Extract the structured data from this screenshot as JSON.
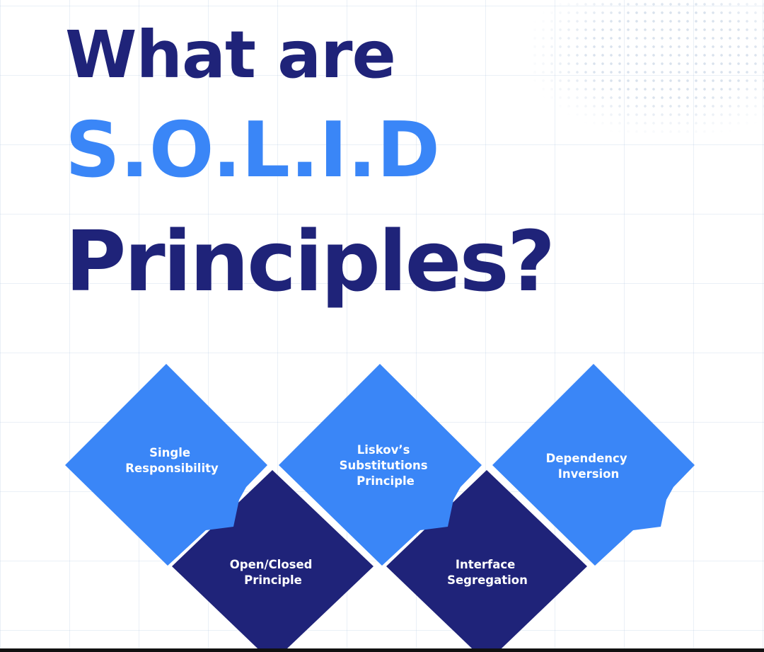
{
  "heading": {
    "line1": "What are",
    "line2": "S.O.L.I.D",
    "line3": "Principles?"
  },
  "principles": {
    "single_responsibility": [
      "Single",
      "Responsibility"
    ],
    "open_closed": [
      "Open/Closed",
      "Principle"
    ],
    "liskov": [
      "Liskov’s",
      "Substitutions",
      "Principle"
    ],
    "interface_segregation": [
      "Interface",
      "Segregation"
    ],
    "dependency_inversion": [
      "Dependency",
      "Inversion"
    ]
  },
  "colors": {
    "navy": "#1f2379",
    "blue": "#3a86f7"
  }
}
